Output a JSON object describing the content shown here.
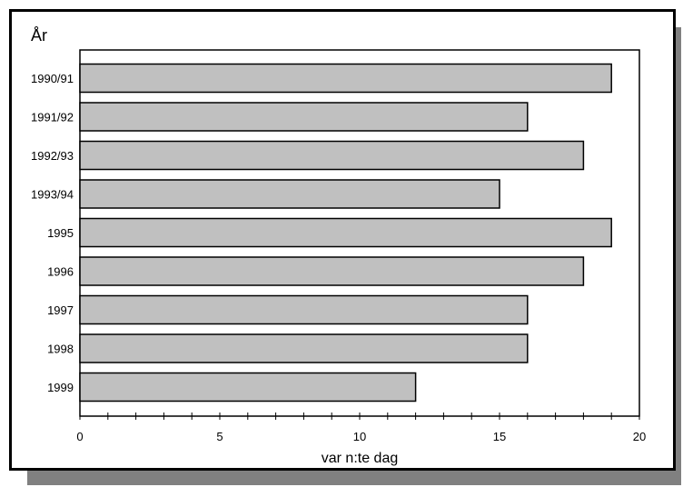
{
  "chart_data": {
    "type": "bar",
    "orientation": "horizontal",
    "categories": [
      "1990/91",
      "1991/92",
      "1992/93",
      "1993/94",
      "1995",
      "1996",
      "1997",
      "1998",
      "1999"
    ],
    "values": [
      19,
      16,
      18,
      15,
      19,
      18,
      16,
      16,
      12
    ],
    "title": "",
    "xlabel": "var n:te dag",
    "ylabel": "År",
    "xlim": [
      0,
      20
    ],
    "xticks": [
      0,
      5,
      10,
      15,
      20
    ],
    "xtick_labels": [
      "0",
      "5",
      "10",
      "15",
      "20"
    ],
    "grid": false,
    "colors": {
      "bar_fill": "#c0c0c0",
      "bar_stroke": "#000000",
      "shadow": "#808080"
    }
  }
}
